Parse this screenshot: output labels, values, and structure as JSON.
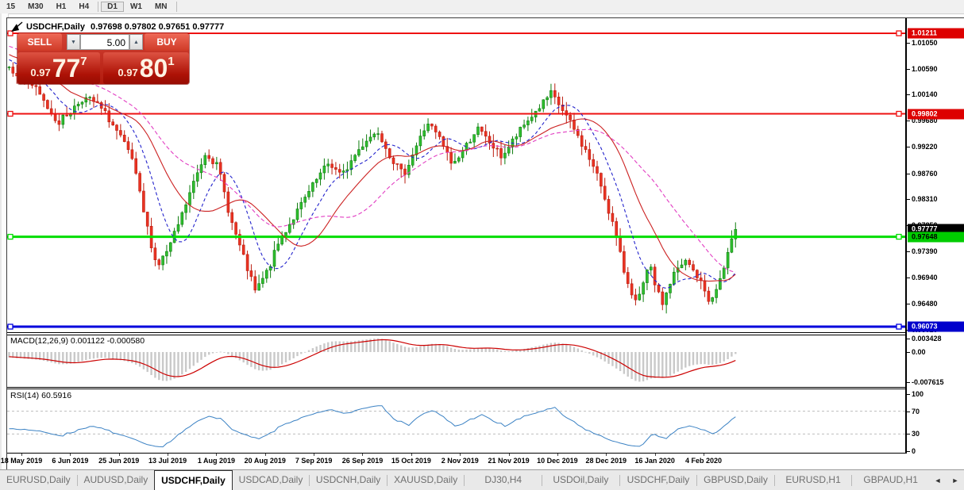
{
  "toolbar": {
    "timeframes": [
      {
        "label": "15"
      },
      {
        "label": "M30"
      },
      {
        "label": "H1"
      },
      {
        "label": "H4"
      },
      {
        "label": "D1",
        "active": true,
        "sep_before": true
      },
      {
        "label": "W1"
      },
      {
        "label": "MN"
      }
    ]
  },
  "chart": {
    "title": "USDCHF,Daily",
    "ohlc_line": "0.97698 0.97802 0.97651 0.97777"
  },
  "trade_panel": {
    "sell_label": "SELL",
    "buy_label": "BUY",
    "volume": "5.00",
    "down_arrow": "▼",
    "up_arrow": "▲",
    "sell_small": "0.97",
    "sell_big": "77",
    "sell_sup": "7",
    "buy_small": "0.97",
    "buy_big": "80",
    "buy_sup": "1"
  },
  "chart_data": {
    "type": "candlestick",
    "symbol": "USDCHF",
    "timeframe": "Daily",
    "ohlc_display": {
      "open": "0.97698",
      "high": "0.97802",
      "low": "0.97651",
      "close": "0.97777"
    },
    "price_axis_ticks": [
      "1.01050",
      "1.00590",
      "1.00140",
      "0.99680",
      "0.99220",
      "0.98760",
      "0.98310",
      "0.97850",
      "0.97390",
      "0.96940",
      "0.96480",
      "0.96020"
    ],
    "levels": [
      {
        "price": 1.01211,
        "label": "1.01211",
        "color": "#ee1111",
        "width": 2,
        "badge_bg": "#dd0000",
        "badge_text": "#ffffff"
      },
      {
        "price": 0.99802,
        "label": "0.99802",
        "color": "#ee1111",
        "width": 2,
        "badge_bg": "#dd0000",
        "badge_text": "#ffffff"
      },
      {
        "price": 0.97648,
        "label": "0.97648",
        "color": "#00dd00",
        "width": 3,
        "badge_bg": "#00cc00",
        "badge_text": "#000000"
      },
      {
        "price": 0.96073,
        "label": "0.96073",
        "color": "#0202dd",
        "width": 3,
        "badge_bg": "#0000cc",
        "badge_text": "#ffffff"
      }
    ],
    "current_price": {
      "value": 0.97777,
      "label": "0.97777",
      "badge_bg": "#000000",
      "badge_text": "#ffffff"
    },
    "x_labels": [
      "18 May 2019",
      "6 Jun 2019",
      "25 Jun 2019",
      "13 Jul 2019",
      "1 Aug 2019",
      "20 Aug 2019",
      "7 Sep 2019",
      "26 Sep 2019",
      "15 Oct 2019",
      "2 Nov 2019",
      "21 Nov 2019",
      "10 Dec 2019",
      "28 Dec 2019",
      "16 Jan 2020",
      "4 Feb 2020"
    ],
    "n_candles": 190,
    "prehistory": {
      "n": 40,
      "start": 1.015
    },
    "close_anchors": [
      1.0063,
      1.0045,
      1.0028,
      0.9995,
      0.9965,
      0.9985,
      1.0008,
      1.0,
      0.9975,
      0.994,
      0.99,
      0.98,
      0.9712,
      0.9745,
      0.98,
      0.986,
      0.9915,
      0.9885,
      0.9795,
      0.973,
      0.9668,
      0.9705,
      0.976,
      0.9795,
      0.983,
      0.9865,
      0.9895,
      0.987,
      0.9905,
      0.9935,
      0.995,
      0.9905,
      0.9872,
      0.992,
      0.9965,
      0.9935,
      0.989,
      0.992,
      0.9955,
      0.993,
      0.9905,
      0.9935,
      0.9965,
      0.999,
      1.0015,
      0.9985,
      0.9948,
      0.9908,
      0.986,
      0.979,
      0.97,
      0.9645,
      0.9715,
      0.9645,
      0.97,
      0.9722,
      0.9692,
      0.9648,
      0.9705,
      0.9778
    ],
    "candle_colors": {
      "up_fill": "#2fbf2f",
      "up_stroke": "#0f7d0f",
      "down_fill": "#ea3323",
      "down_stroke": "#bb1d10"
    },
    "moving_averages": [
      {
        "name": "fast",
        "period": 10,
        "color": "#2323cc",
        "dash": "4,3"
      },
      {
        "name": "medium",
        "period": 20,
        "color": "#cc2222",
        "dash": ""
      },
      {
        "name": "slow",
        "period": 34,
        "color": "#e23fc3",
        "dash": "5,3"
      }
    ],
    "macd": {
      "label": "MACD(12,26,9)",
      "values_text": "0.001122 -0.000580",
      "fast": 12,
      "slow": 26,
      "signal": 9,
      "axis_ticks": [
        {
          "label": "0.003428",
          "value": 0.003428
        },
        {
          "label": "0.00",
          "value": 0
        },
        {
          "label": "-0.007615",
          "value": -0.007615
        }
      ],
      "hist_color": "#c9c9c9",
      "signal_color": "#cc0000"
    },
    "rsi": {
      "label": "RSI(14)",
      "value_text": "60.5916",
      "period": 14,
      "axis_ticks": [
        {
          "label": "100",
          "value": 100
        },
        {
          "label": "70",
          "value": 70
        },
        {
          "label": "30",
          "value": 30
        },
        {
          "label": "0",
          "value": 0
        }
      ],
      "dashed_levels": [
        70,
        30
      ],
      "line_color": "#3b82c4"
    }
  },
  "tabs": {
    "active_index": 2,
    "items": [
      "EURUSD,Daily",
      "AUDUSD,Daily",
      "USDCHF,Daily",
      "USDCAD,Daily",
      "USDCNH,Daily",
      "XAUUSD,Daily",
      "DJ30,H4",
      "USDOil,Daily",
      "USDCHF,Daily",
      "GBPUSD,Daily",
      "EURUSD,H1",
      "GBPAUD,H1"
    ],
    "scroll_left": "◄",
    "scroll_right": "►"
  }
}
